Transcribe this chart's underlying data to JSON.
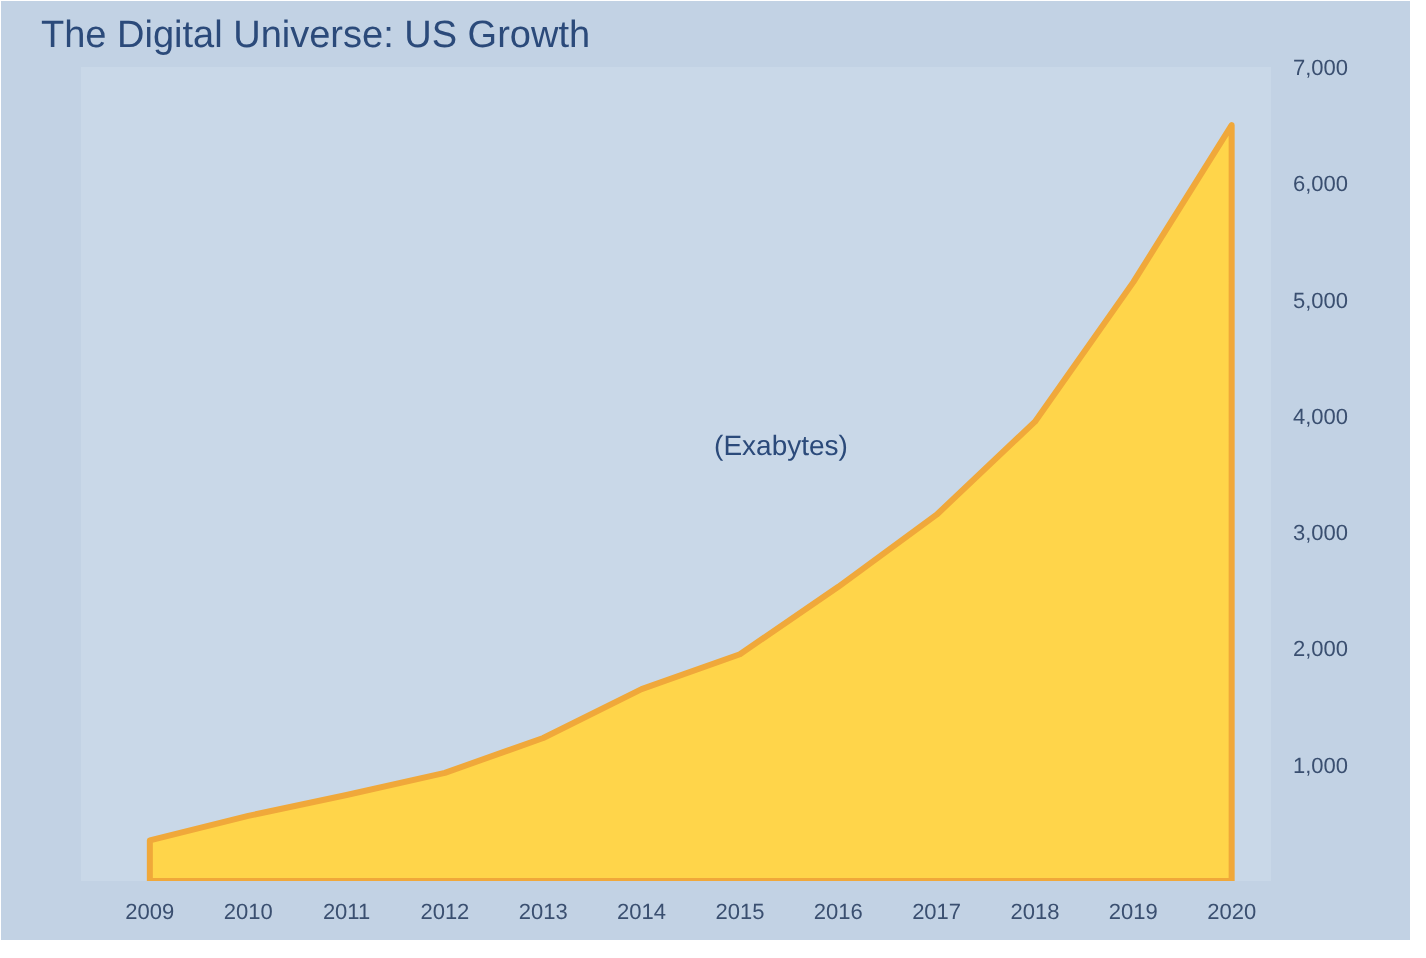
{
  "chart_data": {
    "type": "area",
    "title": "The Digital Universe: US Growth",
    "annotations": [
      "(Exabytes)"
    ],
    "x": [
      2009,
      2010,
      2011,
      2012,
      2013,
      2014,
      2015,
      2016,
      2017,
      2018,
      2019,
      2020
    ],
    "series": [
      {
        "color": "#ffd54a",
        "values": [
          350,
          560,
          740,
          930,
          1230,
          1650,
          1950,
          2530,
          3150,
          3950,
          5150,
          6500
        ]
      }
    ],
    "xlim": [
      2008.3,
      2020.4
    ],
    "xticks": [
      2009,
      2010,
      2011,
      2012,
      2013,
      2014,
      2015,
      2016,
      2017,
      2018,
      2019,
      2020
    ],
    "ylim": [
      0,
      7000
    ],
    "yticks": [
      {
        "value": 1000,
        "label": "1,000"
      },
      {
        "value": 2000,
        "label": "2,000"
      },
      {
        "value": 3000,
        "label": "3,000"
      },
      {
        "value": 4000,
        "label": "4,000"
      },
      {
        "value": 5000,
        "label": "5,000"
      },
      {
        "value": 6000,
        "label": "6,000"
      },
      {
        "value": 7000,
        "label": "7,000"
      }
    ],
    "grid": false
  }
}
